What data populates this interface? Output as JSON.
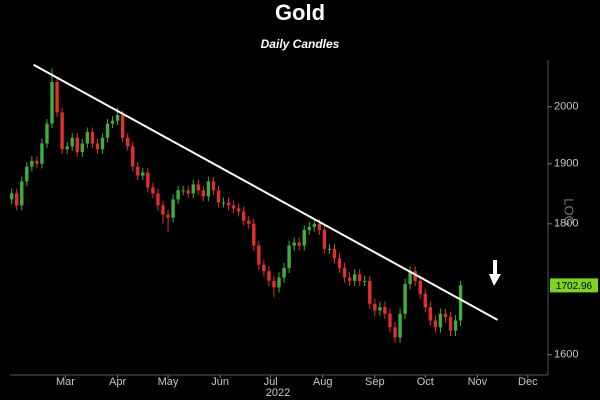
{
  "chart_data": {
    "type": "candlestick",
    "title": "Gold",
    "subtitle": "Daily Candles",
    "x_label": "2022",
    "y_label": "LOG",
    "log_scale": true,
    "grid": false,
    "up_color": "#3fae3a",
    "down_color": "#e0302c",
    "trend_color": "#ffffff",
    "last_color": "#7ed321",
    "xlim": [
      41,
      361
    ],
    "ylim": [
      1571,
      2086
    ],
    "xticks": [
      {
        "value": 74,
        "label": "Mar"
      },
      {
        "value": 105,
        "label": "Apr"
      },
      {
        "value": 135,
        "label": "May"
      },
      {
        "value": 166,
        "label": "Jun"
      },
      {
        "value": 196,
        "label": "Jul"
      },
      {
        "value": 227,
        "label": "Aug"
      },
      {
        "value": 258,
        "label": "Sep"
      },
      {
        "value": 288,
        "label": "Oct"
      },
      {
        "value": 319,
        "label": "Nov"
      },
      {
        "value": 349,
        "label": "Dec"
      }
    ],
    "yticks": [
      1600,
      1800,
      1900,
      2000
    ],
    "x": [
      42,
      45,
      48,
      51,
      54,
      57,
      60,
      63,
      66,
      69,
      72,
      75,
      78,
      81,
      84,
      87,
      90,
      93,
      96,
      99,
      102,
      105,
      108,
      111,
      114,
      117,
      120,
      123,
      126,
      129,
      132,
      135,
      138,
      141,
      144,
      147,
      150,
      153,
      156,
      159,
      162,
      165,
      168,
      171,
      174,
      177,
      180,
      183,
      186,
      189,
      192,
      195,
      198,
      201,
      204,
      207,
      210,
      213,
      216,
      219,
      222,
      225,
      228,
      231,
      234,
      237,
      240,
      243,
      246,
      249,
      252,
      255,
      258,
      261,
      264,
      267,
      270,
      273,
      276,
      279,
      282,
      285,
      288,
      291,
      294,
      297,
      300,
      303,
      306,
      309
    ],
    "open": [
      1840,
      1850,
      1830,
      1870,
      1895,
      1905,
      1900,
      1935,
      1970,
      2045,
      1990,
      1925,
      1930,
      1945,
      1920,
      1935,
      1955,
      1935,
      1925,
      1945,
      1970,
      1975,
      1985,
      1945,
      1930,
      1895,
      1880,
      1885,
      1860,
      1850,
      1830,
      1815,
      1810,
      1840,
      1855,
      1855,
      1850,
      1865,
      1855,
      1845,
      1870,
      1855,
      1835,
      1835,
      1830,
      1825,
      1820,
      1805,
      1800,
      1765,
      1735,
      1725,
      1710,
      1700,
      1715,
      1730,
      1765,
      1770,
      1765,
      1790,
      1795,
      1800,
      1790,
      1760,
      1760,
      1745,
      1730,
      1715,
      1710,
      1720,
      1710,
      1710,
      1675,
      1665,
      1670,
      1660,
      1640,
      1625,
      1660,
      1705,
      1725,
      1710,
      1690,
      1670,
      1650,
      1640,
      1660,
      1655,
      1635,
      1650
    ],
    "high": [
      1858,
      1858,
      1878,
      1903,
      1913,
      1913,
      1943,
      1978,
      2070,
      2053,
      1998,
      1938,
      1953,
      1953,
      1943,
      1963,
      1963,
      1943,
      1953,
      1978,
      1983,
      1998,
      1993,
      1953,
      1938,
      1903,
      1893,
      1893,
      1868,
      1858,
      1838,
      1823,
      1848,
      1863,
      1863,
      1863,
      1873,
      1873,
      1863,
      1878,
      1878,
      1863,
      1843,
      1843,
      1838,
      1833,
      1828,
      1813,
      1808,
      1773,
      1743,
      1733,
      1718,
      1723,
      1738,
      1773,
      1778,
      1778,
      1798,
      1803,
      1808,
      1808,
      1798,
      1768,
      1768,
      1753,
      1738,
      1723,
      1728,
      1728,
      1718,
      1718,
      1683,
      1678,
      1678,
      1668,
      1648,
      1668,
      1713,
      1733,
      1733,
      1718,
      1698,
      1678,
      1658,
      1668,
      1668,
      1663,
      1658,
      1710
    ],
    "low": [
      1832,
      1822,
      1822,
      1862,
      1887,
      1892,
      1892,
      1927,
      1962,
      1982,
      1917,
      1917,
      1922,
      1912,
      1912,
      1927,
      1927,
      1917,
      1917,
      1937,
      1962,
      1967,
      1937,
      1922,
      1887,
      1872,
      1872,
      1852,
      1842,
      1822,
      1800,
      1787,
      1802,
      1832,
      1847,
      1842,
      1842,
      1847,
      1837,
      1837,
      1847,
      1827,
      1827,
      1822,
      1817,
      1812,
      1797,
      1792,
      1757,
      1727,
      1717,
      1702,
      1685,
      1692,
      1707,
      1722,
      1757,
      1757,
      1757,
      1782,
      1787,
      1782,
      1752,
      1752,
      1737,
      1722,
      1707,
      1702,
      1702,
      1702,
      1702,
      1667,
      1657,
      1657,
      1652,
      1632,
      1617,
      1617,
      1652,
      1697,
      1702,
      1682,
      1662,
      1642,
      1632,
      1632,
      1647,
      1627,
      1627,
      1642
    ],
    "close": [
      1850,
      1830,
      1870,
      1895,
      1905,
      1900,
      1935,
      1970,
      2045,
      1990,
      1925,
      1930,
      1945,
      1920,
      1935,
      1955,
      1935,
      1925,
      1945,
      1970,
      1975,
      1985,
      1945,
      1930,
      1895,
      1880,
      1885,
      1860,
      1850,
      1830,
      1815,
      1810,
      1840,
      1855,
      1855,
      1850,
      1865,
      1855,
      1845,
      1870,
      1855,
      1835,
      1835,
      1830,
      1825,
      1820,
      1805,
      1800,
      1765,
      1735,
      1725,
      1710,
      1700,
      1715,
      1730,
      1765,
      1770,
      1765,
      1790,
      1795,
      1800,
      1790,
      1760,
      1760,
      1745,
      1730,
      1715,
      1710,
      1720,
      1710,
      1710,
      1675,
      1665,
      1670,
      1660,
      1640,
      1625,
      1660,
      1705,
      1725,
      1710,
      1690,
      1670,
      1650,
      1640,
      1660,
      1655,
      1635,
      1650,
      1702.96
    ],
    "trendline": {
      "x": [
        55,
        331
      ],
      "y": [
        2077,
        1651
      ]
    }
  }
}
